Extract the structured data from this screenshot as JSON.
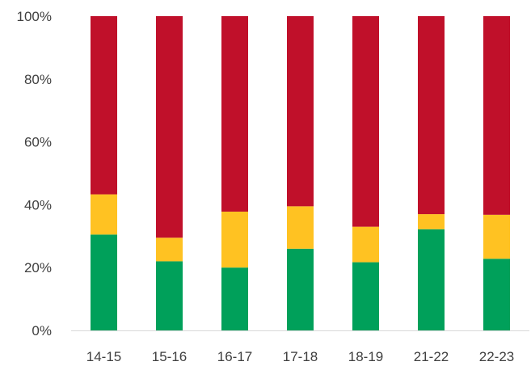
{
  "chart_data": {
    "type": "bar",
    "stacked": true,
    "percent": true,
    "categories": [
      "14-15",
      "15-16",
      "16-17",
      "17-18",
      "18-19",
      "21-22",
      "22-23"
    ],
    "series": [
      {
        "color": "#00a05a",
        "values": [
          30.5,
          22,
          20,
          26,
          21.7,
          32.2,
          22.8
        ]
      },
      {
        "color": "#ffc222",
        "values": [
          12.8,
          7.5,
          17.8,
          13.5,
          11.3,
          4.8,
          14
        ]
      },
      {
        "color": "#c0102a",
        "values": [
          56.7,
          70.5,
          62.2,
          60.5,
          67,
          63,
          63.2
        ]
      }
    ],
    "ylim": [
      0,
      100
    ],
    "yticks": [
      "0%",
      "20%",
      "40%",
      "60%",
      "80%",
      "100%"
    ],
    "grid": false,
    "legend": "none",
    "title": "",
    "xlabel": "",
    "ylabel": ""
  }
}
